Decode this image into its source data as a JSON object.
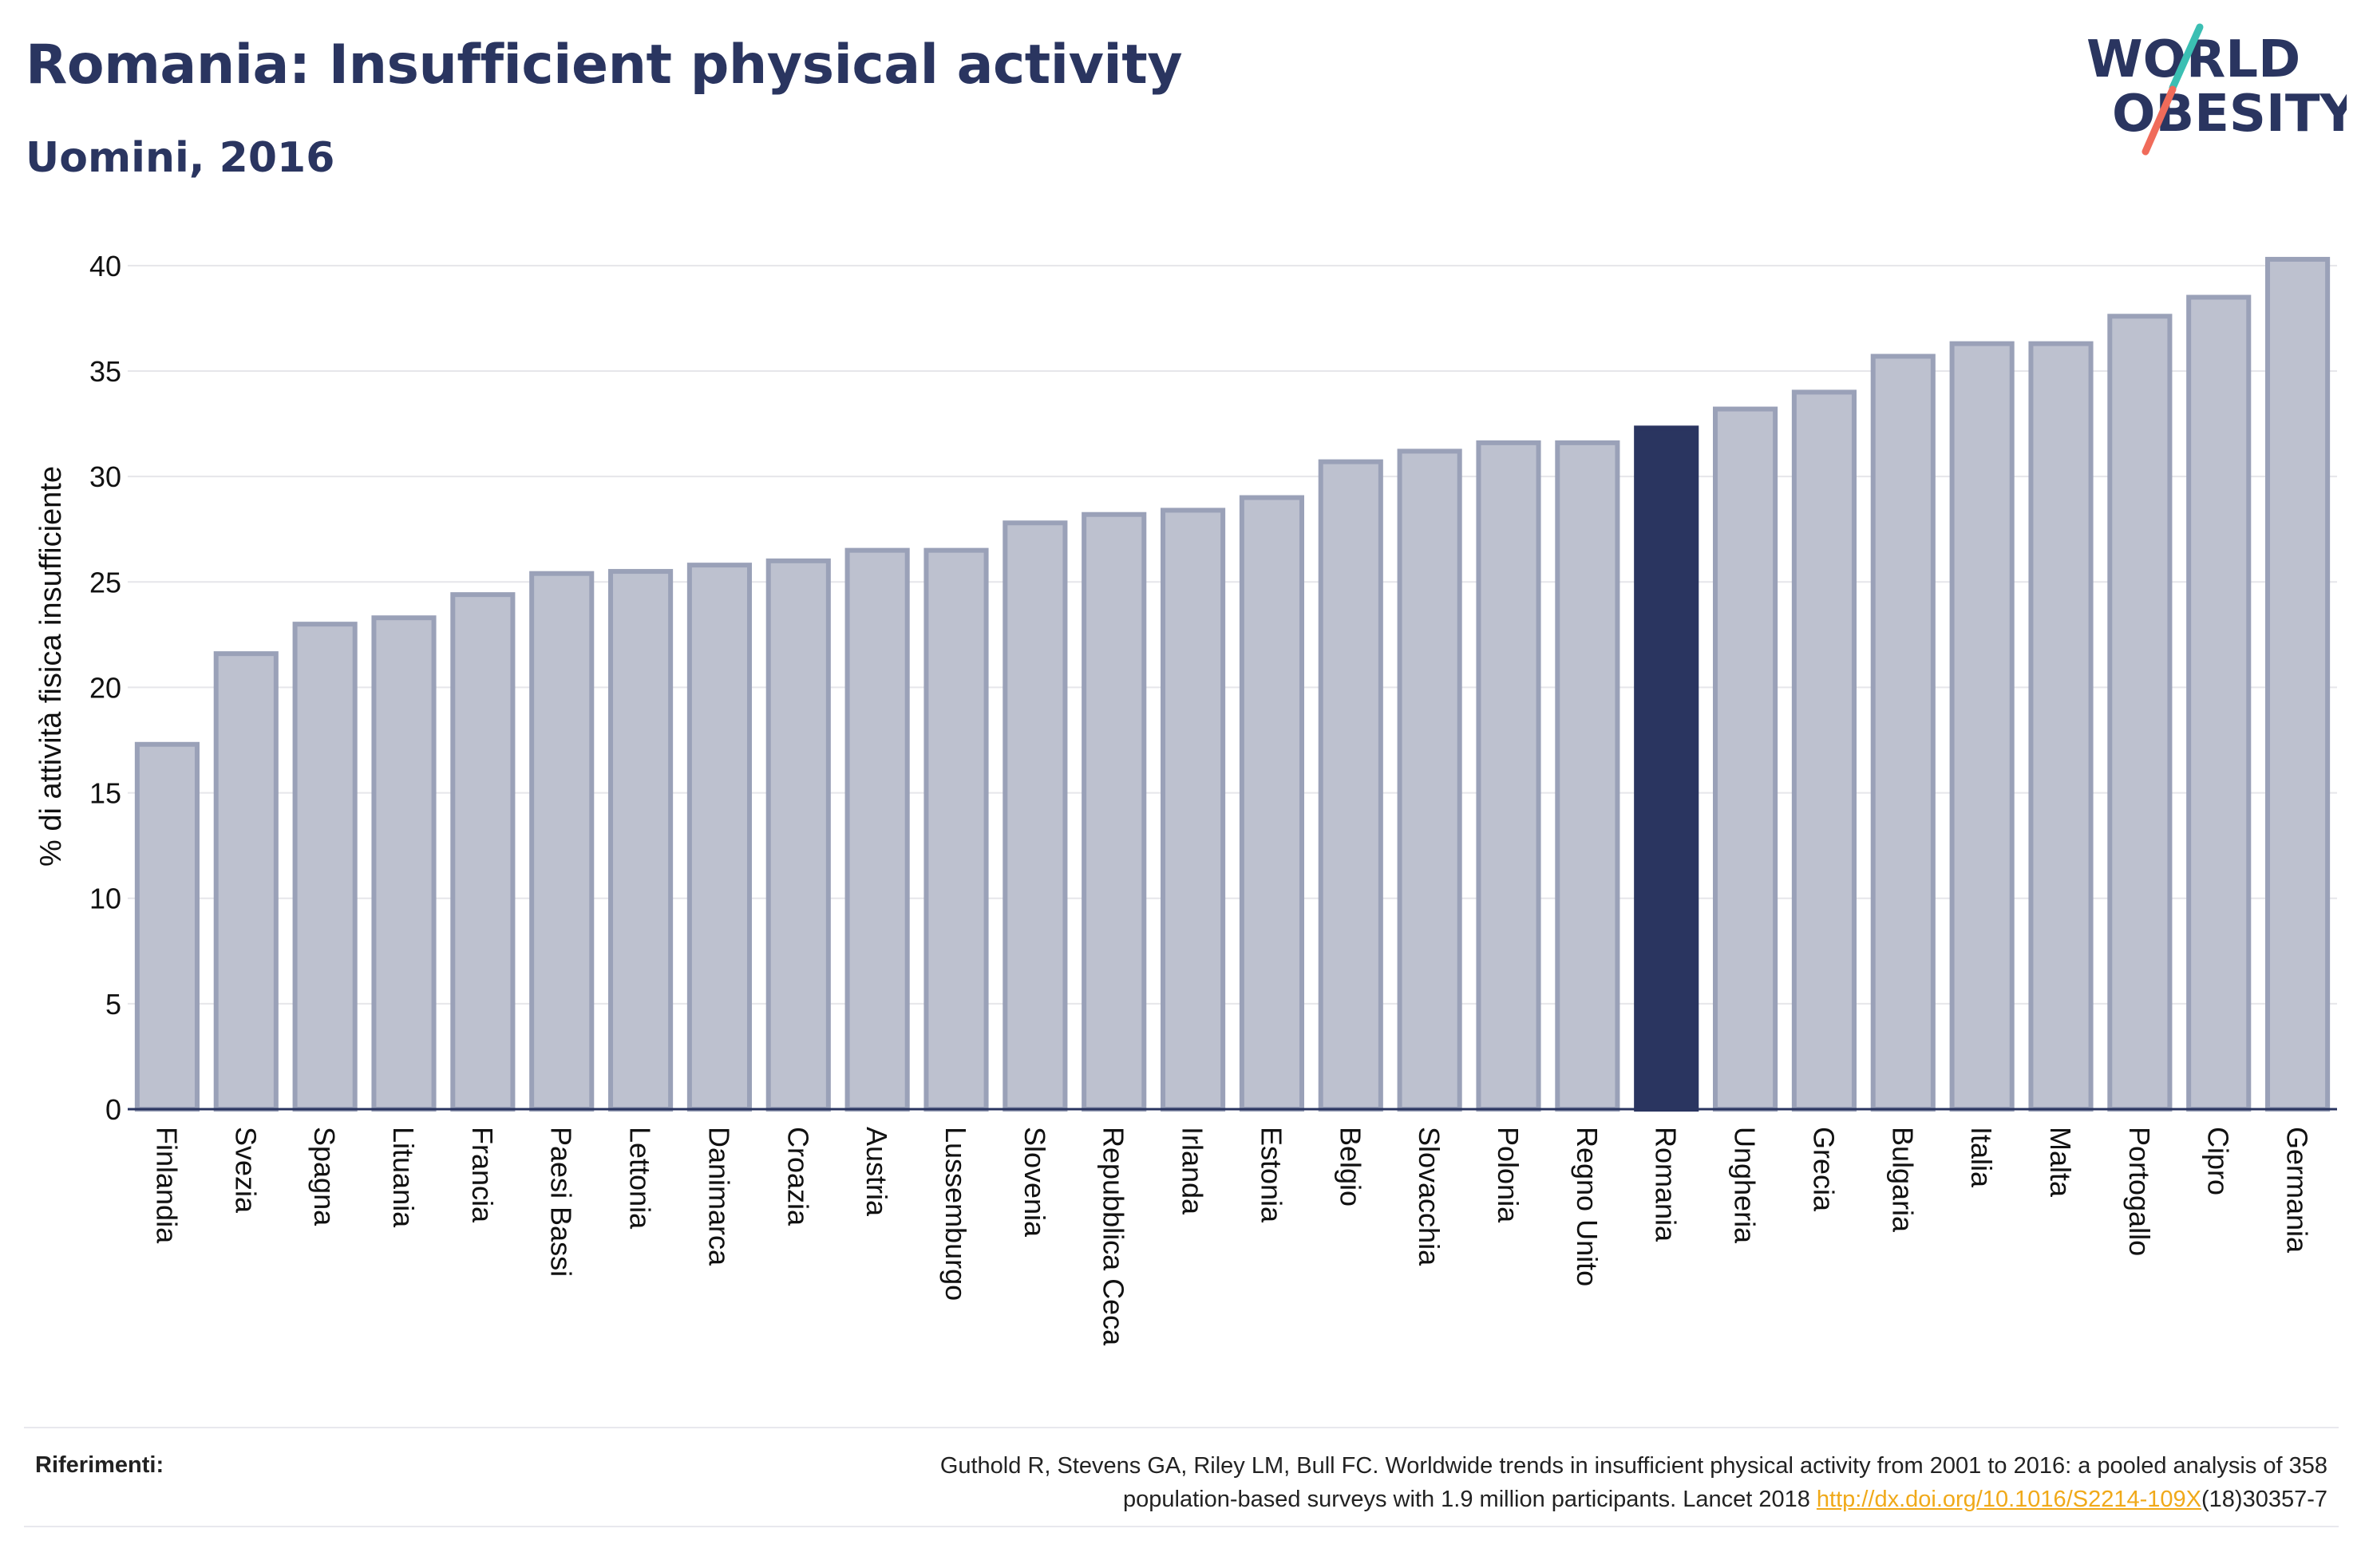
{
  "header": {
    "title": "Romania: Insufficient physical activity",
    "subtitle": "Uomini, 2016"
  },
  "logo": {
    "line1": "WORLD",
    "line2": "OBESITY",
    "accent_teal": "#3bbfb3",
    "accent_coral": "#f06b5a"
  },
  "colors": {
    "text_primary": "#2a3560",
    "bar_default": "#bdc1cf",
    "bar_default_border": "#9aa1b8",
    "bar_highlight": "#2a3560",
    "grid": "#e6e6ea",
    "link": "#f0a919"
  },
  "chart_data": {
    "type": "bar",
    "ylabel": "% di attività fisica insufficiente",
    "ylim": [
      0,
      42
    ],
    "yticks": [
      0,
      5,
      10,
      15,
      20,
      25,
      30,
      35,
      40
    ],
    "grid": true,
    "highlight": "Romania",
    "categories": [
      "Finlandia",
      "Svezia",
      "Spagna",
      "Lituania",
      "Francia",
      "Paesi Bassi",
      "Lettonia",
      "Danimarca",
      "Croazia",
      "Austria",
      "Lussemburgo",
      "Slovenia",
      "Repubblica Ceca",
      "Irlanda",
      "Estonia",
      "Belgio",
      "Slovacchia",
      "Polonia",
      "Regno Unito",
      "Romania",
      "Ungheria",
      "Grecia",
      "Bulgaria",
      "Italia",
      "Malta",
      "Portogallo",
      "Cipro",
      "Germania"
    ],
    "values": [
      17.3,
      21.6,
      23.0,
      23.3,
      24.4,
      25.4,
      25.5,
      25.8,
      26.0,
      26.5,
      26.5,
      27.8,
      28.2,
      28.4,
      29.0,
      30.7,
      31.2,
      31.6,
      31.6,
      32.3,
      33.2,
      34.0,
      35.7,
      36.3,
      36.3,
      37.6,
      38.5,
      40.3
    ]
  },
  "references": {
    "label": "Riferimenti:",
    "text_line1": "Guthold R, Stevens GA, Riley LM, Bull FC. Worldwide trends in insufficient physical activity from 2001 to 2016: a pooled analysis of 358",
    "text_line2_prefix": "population-based surveys with 1.9 million participants. Lancet 2018 ",
    "link": "http://dx.doi.org/10.1016/S2214-109X",
    "text_line2_suffix": "(18)30357-7"
  }
}
